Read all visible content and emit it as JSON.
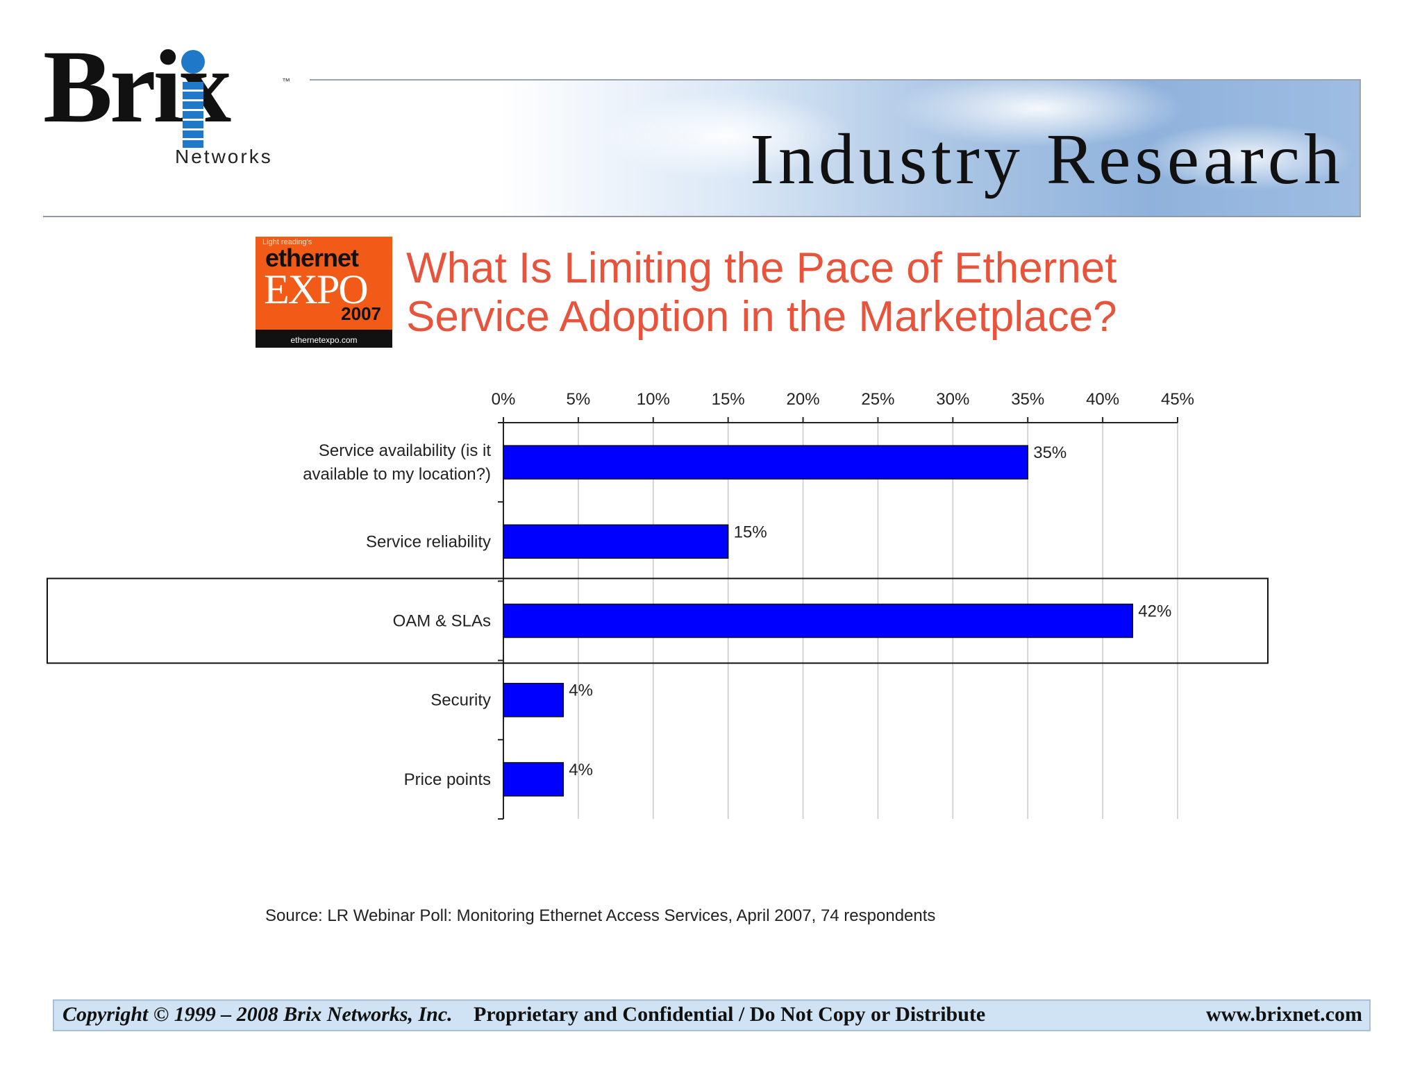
{
  "header": {
    "logo_word": "Brix",
    "logo_tm": "™",
    "logo_sub": "Networks",
    "banner_title": "Industry Research"
  },
  "badge": {
    "top": "Light reading's",
    "word": "ethernet",
    "name": "EXPO",
    "year": "2007",
    "url": "ethernetexpo.com"
  },
  "question": {
    "line1": "What Is Limiting the Pace of Ethernet",
    "line2": "Service Adoption in the Marketplace?"
  },
  "chart_data": {
    "type": "bar",
    "orientation": "horizontal",
    "categories": [
      "Service availability (is it available to my location?)",
      "Service reliability",
      "OAM & SLAs",
      "Security",
      "Price points"
    ],
    "category_lines": [
      [
        "Service availability (is it",
        "available to my location?)"
      ],
      [
        "Service reliability"
      ],
      [
        "OAM & SLAs"
      ],
      [
        "Security"
      ],
      [
        "Price points"
      ]
    ],
    "values": [
      35,
      15,
      42,
      4,
      4
    ],
    "value_labels": [
      "35%",
      "15%",
      "42%",
      "4%",
      "4%"
    ],
    "xlim": [
      0,
      45
    ],
    "xticks": [
      0,
      5,
      10,
      15,
      20,
      25,
      30,
      35,
      40,
      45
    ],
    "xtick_labels": [
      "0%",
      "5%",
      "10%",
      "15%",
      "20%",
      "25%",
      "30%",
      "35%",
      "40%",
      "45%"
    ],
    "axis_position": "top",
    "grid": true,
    "highlight_category": "OAM & SLAs",
    "bar_color": "#0000ff",
    "title": "What Is Limiting the Pace of Ethernet Service Adoption in the Marketplace?"
  },
  "source": "Source: LR Webinar Poll: Monitoring Ethernet Access Services, April 2007, 74 respondents",
  "footer": {
    "copyright": "Copyright © 1999 – 2008 Brix Networks, Inc.",
    "confidential": "Proprietary and Confidential / Do Not Copy or Distribute",
    "url": "www.brixnet.com"
  }
}
